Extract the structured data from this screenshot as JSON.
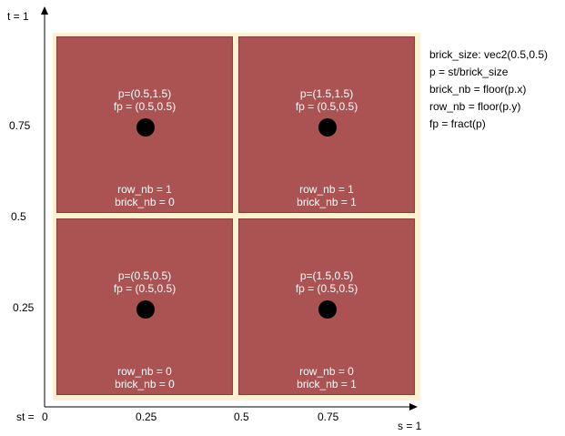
{
  "axes": {
    "t_top": "t = 1",
    "s_right": "s = 1",
    "origin": "st  =",
    "x_ticks": [
      "0",
      "0.25",
      "0.5",
      "0.75"
    ],
    "y_ticks": [
      "0.75",
      "0.5",
      "0.25"
    ]
  },
  "cells": [
    {
      "p": "p=(0.5,1.5)",
      "fp": "fp = (0.5,0.5)",
      "row": "row_nb = 1",
      "brick": "brick_nb = 0"
    },
    {
      "p": "p=(1.5,1.5)",
      "fp": "fp = (0.5,0.5)",
      "row": "row_nb = 1",
      "brick": "brick_nb = 1"
    },
    {
      "p": "p=(0.5,0.5)",
      "fp": "fp = (0.5,0.5)",
      "row": "row_nb = 0",
      "brick": "brick_nb = 0"
    },
    {
      "p": "p=(1.5,0.5)",
      "fp": "fp = (0.5,0.5)",
      "row": "row_nb = 0",
      "brick": "brick_nb = 1"
    }
  ],
  "info": [
    "brick_size: vec2(0.5,0.5)",
    "p = st/brick_size",
    "brick_nb = floor(p.x)",
    "row_nb = floor(p.y)",
    "fp = fract(p)"
  ],
  "colors": {
    "brick": "#ab5252",
    "mortar": "#fdf1cf",
    "dot": "#000000"
  }
}
